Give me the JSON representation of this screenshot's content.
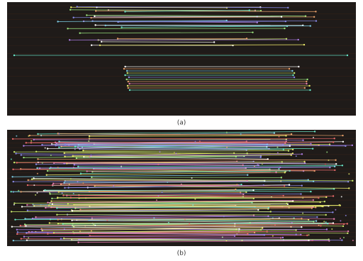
{
  "figure": {
    "captions": [
      "(a)",
      "(b)"
    ]
  }
}
